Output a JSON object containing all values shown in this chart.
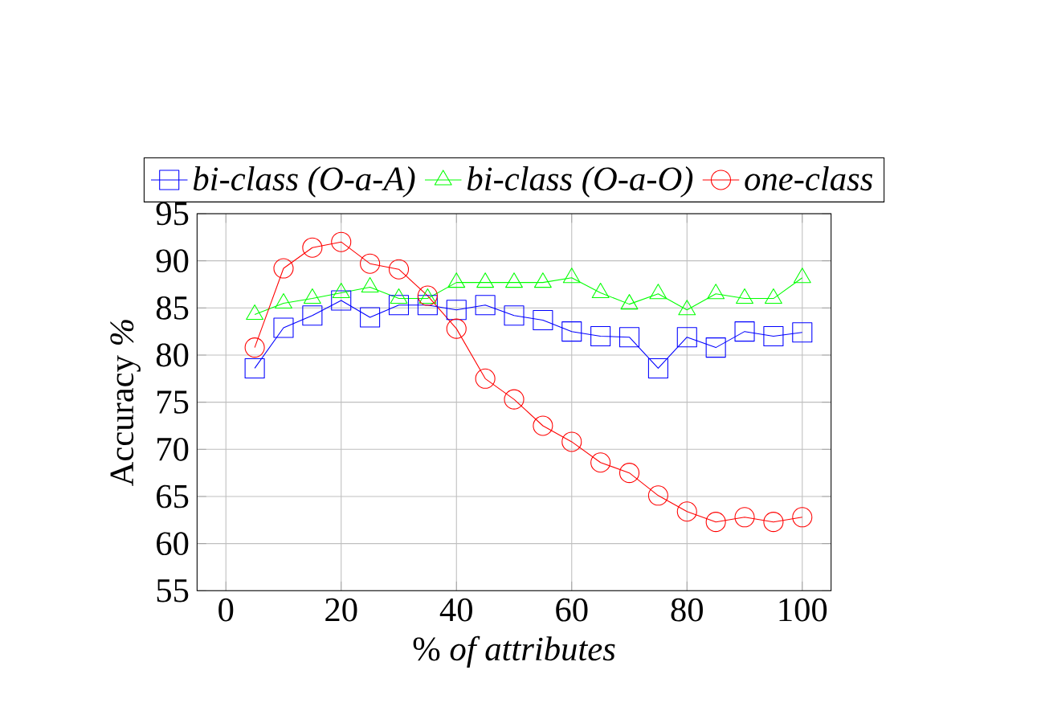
{
  "chart_data": {
    "type": "line",
    "xlabel": "% *of attributes*",
    "ylabel": "Accuracy *%*",
    "x": [
      5,
      10,
      15,
      20,
      25,
      30,
      35,
      40,
      45,
      50,
      55,
      60,
      65,
      70,
      75,
      80,
      85,
      90,
      95,
      100
    ],
    "series": [
      {
        "name": "bi-class (O-a-A)",
        "color": "#0000ff",
        "marker": "square",
        "values": [
          78.6,
          82.9,
          84.2,
          85.8,
          84.0,
          85.3,
          85.3,
          84.8,
          85.3,
          84.2,
          83.7,
          82.5,
          82.0,
          81.9,
          78.6,
          81.9,
          80.8,
          82.5,
          82.0,
          82.4
        ]
      },
      {
        "name": "bi-class (O-a-O)",
        "color": "#00ff00",
        "marker": "triangle",
        "values": [
          84.3,
          85.5,
          86.0,
          86.6,
          87.2,
          86.0,
          86.0,
          87.7,
          87.7,
          87.7,
          87.7,
          88.2,
          86.6,
          85.4,
          86.5,
          84.8,
          86.5,
          86.0,
          86.0,
          88.2
        ]
      },
      {
        "name": "one-class",
        "color": "#ff0000",
        "marker": "circle",
        "values": [
          80.8,
          89.2,
          91.4,
          92.0,
          89.7,
          89.1,
          86.3,
          82.8,
          77.5,
          75.3,
          72.5,
          70.8,
          68.6,
          67.5,
          65.1,
          63.4,
          62.3,
          62.8,
          62.3,
          62.8
        ]
      }
    ],
    "xlim": [
      -5,
      105
    ],
    "ylim": [
      55,
      95
    ],
    "xticks": [
      0,
      20,
      40,
      60,
      80,
      100
    ],
    "yticks": [
      55,
      60,
      65,
      70,
      75,
      80,
      85,
      90,
      95
    ],
    "grid": true,
    "legend": "top",
    "line_style": "solid"
  }
}
